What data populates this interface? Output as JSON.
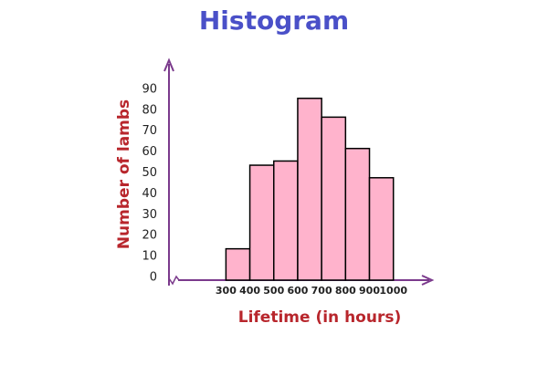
{
  "chart_data": {
    "type": "histogram",
    "title": "Histogram",
    "xlabel": "Lifetime (in hours)",
    "ylabel": "Number of lambs",
    "bins": [
      300,
      400,
      500,
      600,
      700,
      800,
      900,
      1000
    ],
    "values": [
      15,
      55,
      57,
      87,
      78,
      63,
      49
    ],
    "color": "#ffb3cc",
    "edgecolor": "#000000",
    "axis_color": "#7b3a8c",
    "xlim": [
      100,
      1150
    ],
    "xticks": [
      300,
      400,
      500,
      600,
      700,
      800,
      900,
      1000
    ],
    "ylim": [
      0,
      100
    ],
    "yticks": [
      0,
      10,
      20,
      30,
      40,
      50,
      60,
      70,
      80,
      90
    ],
    "grid": false
  }
}
